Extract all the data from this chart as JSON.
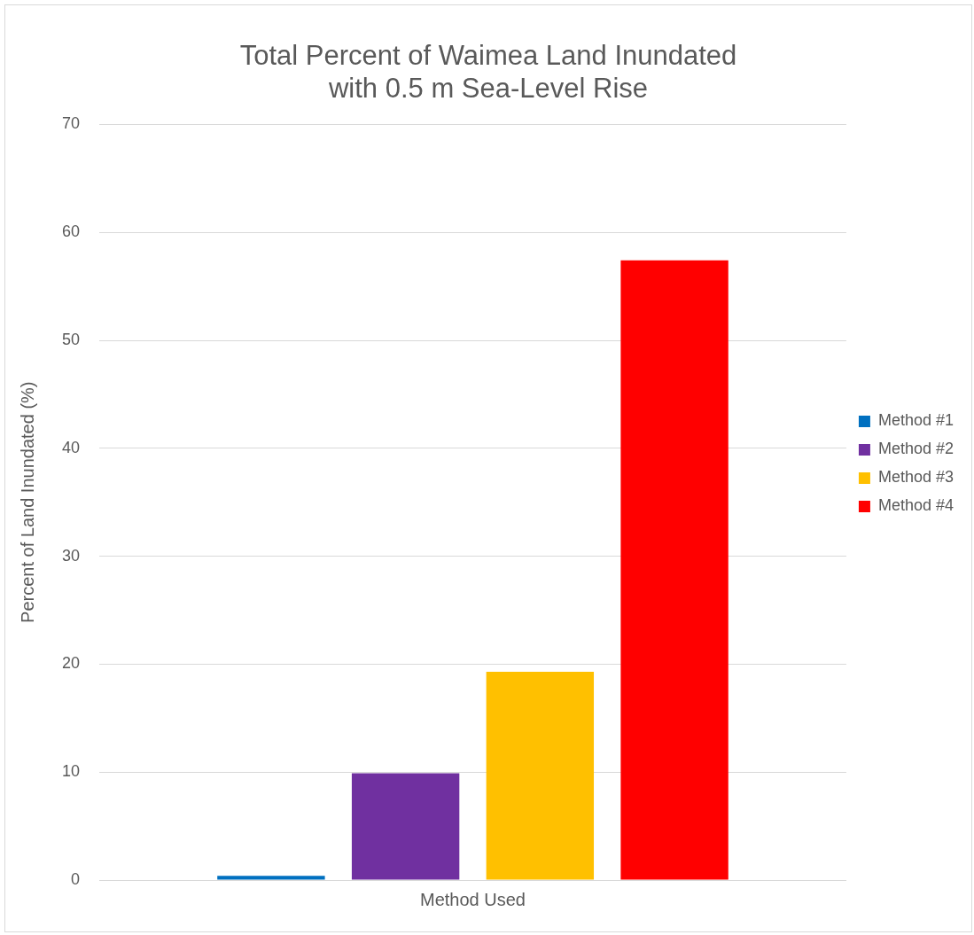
{
  "chart_data": {
    "type": "bar",
    "title": [
      "Total Percent of Waimea Land Inundated",
      "with 0.5 m Sea-Level Rise"
    ],
    "ylabel": "Percent of Land Inundated (%)",
    "categories": [
      "Method Used"
    ],
    "series": [
      {
        "name": "Method #1",
        "color": "#0070c0",
        "values": [
          0.4
        ]
      },
      {
        "name": "Method #2",
        "color": "#7030a0",
        "values": [
          9.9
        ]
      },
      {
        "name": "Method #3",
        "color": "#ffc000",
        "values": [
          19.3
        ]
      },
      {
        "name": "Method #4",
        "color": "#ff0000",
        "values": [
          57.4
        ]
      }
    ],
    "ylim": [
      0,
      70
    ],
    "yticks": [
      0,
      10,
      20,
      30,
      40,
      50,
      60,
      70
    ],
    "grid": "y",
    "legend": "right"
  }
}
